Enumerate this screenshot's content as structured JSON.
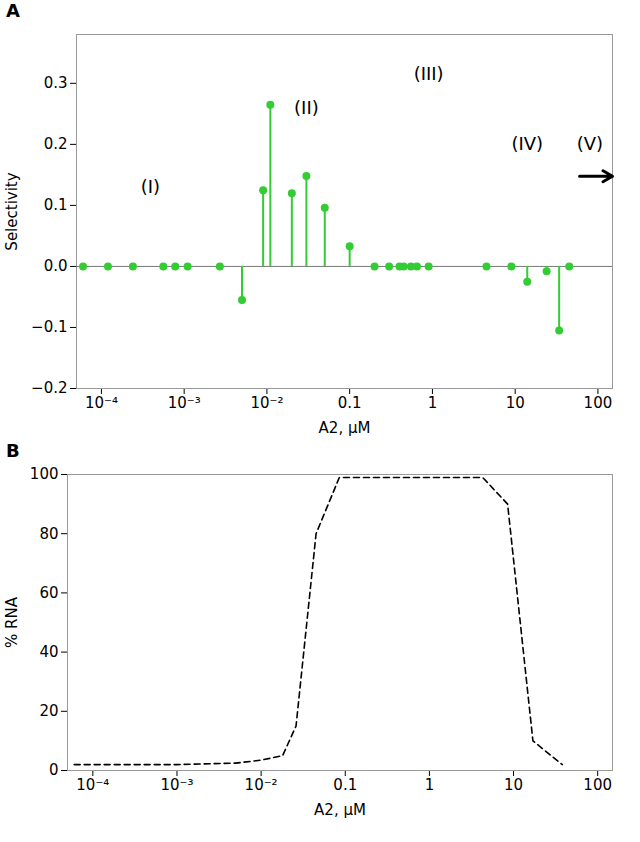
{
  "chart_data": [
    {
      "type": "stem",
      "panel": "A",
      "x": [
        6e-05,
        0.00012,
        0.00024,
        0.00056,
        0.00078,
        0.0011,
        0.0027,
        0.005,
        0.009,
        0.011,
        0.02,
        0.03,
        0.05,
        0.1,
        0.2,
        0.3,
        0.4,
        0.45,
        0.55,
        0.65,
        0.9,
        4.5,
        9,
        14,
        24,
        34,
        45
      ],
      "values": [
        0,
        0,
        0,
        0,
        0,
        0,
        0,
        -0.055,
        0.125,
        0.265,
        0.12,
        0.148,
        0.096,
        0.033,
        0,
        0,
        0,
        0,
        0,
        0,
        0,
        0,
        0,
        -0.025,
        -0.008,
        -0.105,
        0
      ],
      "color": "#33cc33",
      "marker": "circle",
      "log": "x",
      "xlim": [
        5e-05,
        150
      ],
      "xticks": [
        {
          "value": 0.0001,
          "label": "10⁻⁴"
        },
        {
          "value": 0.001,
          "label": "10⁻³"
        },
        {
          "value": 0.01,
          "label": "10⁻²"
        },
        0.1,
        1,
        10,
        100
      ],
      "ylim": [
        -0.2,
        0.38
      ],
      "yticks": [
        {
          "value": -0.2,
          "label": "−0.2"
        },
        {
          "value": -0.1,
          "label": "−0.1"
        },
        {
          "value": 0,
          "label": "0.0"
        },
        0.1,
        0.2,
        0.3
      ],
      "x_label": "A2, μM",
      "y_label": "Selectivity",
      "annotations": [
        {
          "text": "(I)",
          "x": 0.00039,
          "y": 0.13
        },
        {
          "text": "(II)",
          "x": 0.03,
          "y": 0.26
        },
        {
          "text": "(III)",
          "x": 0.9,
          "y": 0.315
        },
        {
          "text": "(IV)",
          "x": 14,
          "y": 0.2
        },
        {
          "text": "(V)",
          "x": 80,
          "y": 0.2
        }
      ]
    },
    {
      "type": "line",
      "panel": "B",
      "x": [
        6e-05,
        0.001,
        0.005,
        0.01,
        0.018,
        0.026,
        0.045,
        0.085,
        0.5,
        4.3,
        8.5,
        17,
        38
      ],
      "values": [
        2,
        2,
        2.5,
        3.5,
        5,
        15,
        80,
        99,
        99,
        99,
        90,
        10,
        2
      ],
      "color": "#000000",
      "line_style": "dashed",
      "log": "x",
      "xlim": [
        5e-05,
        150
      ],
      "xticks": [
        {
          "value": 0.0001,
          "label": "10⁻⁴"
        },
        {
          "value": 0.001,
          "label": "10⁻³"
        },
        {
          "value": 0.01,
          "label": "10⁻²"
        },
        0.1,
        1,
        10,
        100
      ],
      "ylim": [
        0,
        100
      ],
      "yticks": [
        0,
        20,
        40,
        60,
        80,
        100
      ],
      "x_label": "A2, μM",
      "y_label": "% RNA"
    }
  ]
}
